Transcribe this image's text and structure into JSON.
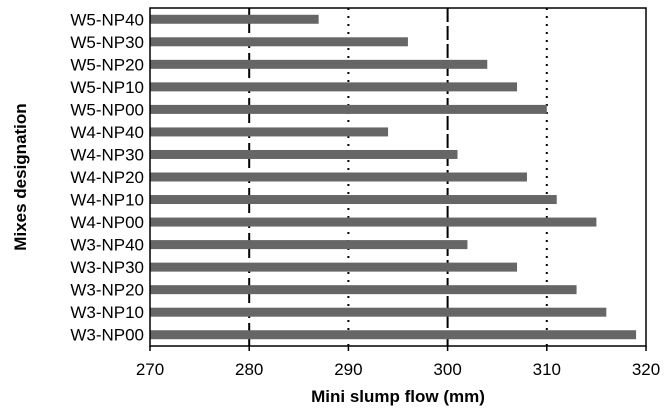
{
  "chart_data": {
    "type": "bar",
    "orientation": "horizontal",
    "title": "",
    "xlabel": "Mini slump flow (mm)",
    "ylabel": "Mixes designation",
    "xlim": [
      270,
      320
    ],
    "xticks": [
      270,
      280,
      290,
      300,
      310,
      320
    ],
    "categories": [
      "W5-NP40",
      "W5-NP30",
      "W5-NP20",
      "W5-NP10",
      "W5-NP00",
      "W4-NP40",
      "W4-NP30",
      "W4-NP20",
      "W4-NP10",
      "W4-NP00",
      "W3-NP40",
      "W3-NP30",
      "W3-NP20",
      "W3-NP10",
      "W3-NP00"
    ],
    "values": [
      287,
      296,
      304,
      307,
      310,
      294,
      301,
      308,
      311,
      315,
      302,
      307,
      313,
      316,
      319
    ],
    "bar_color": "#666666",
    "grid": "vertical dashed gridlines",
    "legend": "none"
  }
}
